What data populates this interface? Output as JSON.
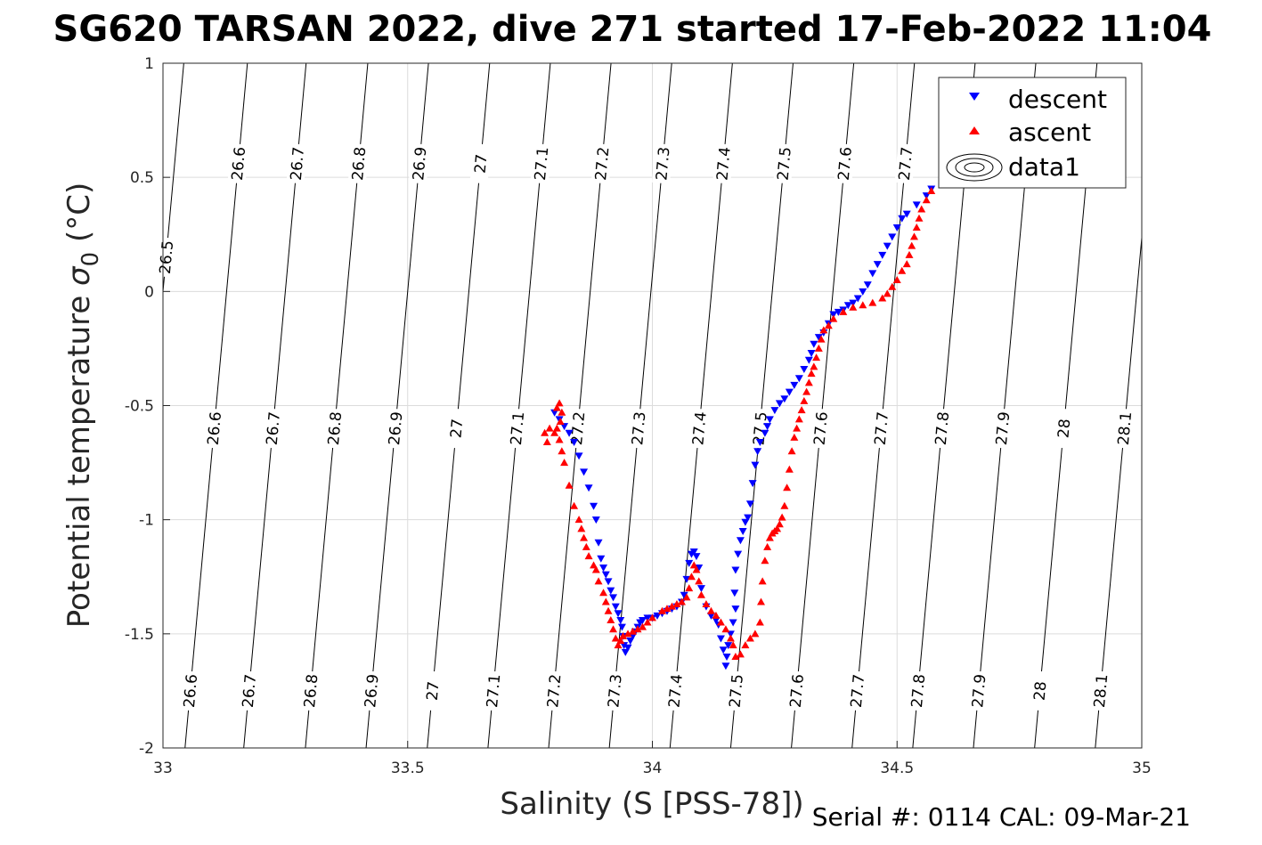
{
  "chart_data": {
    "type": "scatter",
    "title": "SG620 TARSAN 2022, dive 271 started 17-Feb-2022 11:04",
    "xlabel": "Salinity (S [PSS-78])",
    "ylabel": "Potential temperature σ₀ (°C)",
    "ylabel_main": "Potential temperature ",
    "ylabel_sigma": "σ",
    "ylabel_sub": "0",
    "ylabel_unit": " (°C)",
    "footer": "Serial #: 0114  CAL: 09-Mar-21",
    "xlim": [
      33,
      35
    ],
    "ylim": [
      -2,
      1
    ],
    "xticks": [
      33,
      33.5,
      34,
      34.5,
      35
    ],
    "xtick_labels": [
      "33",
      "33.5",
      "34",
      "34.5",
      "35"
    ],
    "yticks": [
      1,
      0.5,
      0,
      -0.5,
      -1,
      -1.5,
      -2
    ],
    "ytick_labels": [
      "1",
      "0.5",
      "0",
      "-0.5",
      "-1",
      "-1.5",
      "-2"
    ],
    "grid": true,
    "legend_position": "top-right",
    "legend": [
      "descent",
      "ascent",
      "data1"
    ],
    "colors": {
      "descent": "#0000ff",
      "ascent": "#ff0000",
      "contour": "#000000",
      "grid": "#dcdcdc"
    },
    "isopycnals": {
      "levels": [
        26.5,
        26.6,
        26.7,
        26.8,
        26.9,
        27.0,
        27.1,
        27.2,
        27.3,
        27.4,
        27.5,
        27.6,
        27.7,
        27.8,
        27.9,
        28.0,
        28.1
      ],
      "label_text": [
        "26.5",
        "26.6",
        "26.7",
        "26.8",
        "26.9",
        "27",
        "27.1",
        "27.2",
        "27.3",
        "27.4",
        "27.5",
        "27.6",
        "27.7",
        "27.8",
        "27.9",
        "28",
        "28.1"
      ],
      "salinity_at_theta_0": [
        33.0,
        33.13,
        33.25,
        33.376,
        33.5,
        33.625,
        33.749,
        33.873,
        33.997,
        34.121,
        34.245,
        34.369,
        34.493,
        34.617,
        34.741,
        34.866,
        34.99
      ],
      "labels_top_row": [
        "26.6",
        "26.7",
        "26.8",
        "26.9",
        "27",
        "27.1",
        "27.2",
        "27.3",
        "27.4",
        "27.5",
        "27.6",
        "27.7"
      ],
      "labels_mid_row": [
        "26.6",
        "26.7",
        "26.8",
        "26.9",
        "27",
        "27.1",
        "27.2",
        "27.3",
        "27.4",
        "27.5",
        "27.6",
        "27.7",
        "27.8",
        "27.9",
        "28",
        "28.1"
      ],
      "labels_bottom_row": [
        "26.6",
        "26.7",
        "26.8",
        "26.9",
        "27",
        "27.1",
        "27.2",
        "27.3",
        "27.4",
        "27.5",
        "27.6",
        "27.7",
        "27.8",
        "27.9",
        "28",
        "28.1"
      ]
    },
    "series": [
      {
        "name": "descent",
        "marker": "triangle-down",
        "points": [
          [
            34.57,
            0.45
          ],
          [
            34.56,
            0.42
          ],
          [
            34.54,
            0.38
          ],
          [
            34.52,
            0.34
          ],
          [
            34.51,
            0.32
          ],
          [
            34.5,
            0.28
          ],
          [
            34.49,
            0.24
          ],
          [
            34.48,
            0.2
          ],
          [
            34.47,
            0.16
          ],
          [
            34.46,
            0.12
          ],
          [
            34.45,
            0.08
          ],
          [
            34.44,
            0.03
          ],
          [
            34.43,
            0.0
          ],
          [
            34.42,
            -0.03
          ],
          [
            34.41,
            -0.05
          ],
          [
            34.4,
            -0.06
          ],
          [
            34.39,
            -0.08
          ],
          [
            34.38,
            -0.09
          ],
          [
            34.37,
            -0.1
          ],
          [
            34.36,
            -0.14
          ],
          [
            34.35,
            -0.18
          ],
          [
            34.34,
            -0.2
          ],
          [
            34.33,
            -0.23
          ],
          [
            34.325,
            -0.27
          ],
          [
            34.32,
            -0.3
          ],
          [
            34.31,
            -0.34
          ],
          [
            34.3,
            -0.38
          ],
          [
            34.29,
            -0.41
          ],
          [
            34.28,
            -0.44
          ],
          [
            34.27,
            -0.47
          ],
          [
            34.26,
            -0.49
          ],
          [
            34.25,
            -0.52
          ],
          [
            34.24,
            -0.56
          ],
          [
            34.235,
            -0.59
          ],
          [
            34.23,
            -0.62
          ],
          [
            34.22,
            -0.66
          ],
          [
            34.215,
            -0.7
          ],
          [
            34.21,
            -0.76
          ],
          [
            34.205,
            -0.84
          ],
          [
            34.2,
            -0.93
          ],
          [
            34.195,
            -0.99
          ],
          [
            34.19,
            -1.01
          ],
          [
            34.185,
            -1.05
          ],
          [
            34.18,
            -1.09
          ],
          [
            34.175,
            -1.15
          ],
          [
            34.17,
            -1.22
          ],
          [
            34.168,
            -1.32
          ],
          [
            34.17,
            -1.39
          ],
          [
            34.165,
            -1.45
          ],
          [
            34.16,
            -1.5
          ],
          [
            34.155,
            -1.55
          ],
          [
            34.152,
            -1.6
          ],
          [
            34.15,
            -1.64
          ],
          [
            34.145,
            -1.57
          ],
          [
            34.14,
            -1.52
          ],
          [
            34.135,
            -1.46
          ],
          [
            34.13,
            -1.44
          ],
          [
            34.12,
            -1.42
          ],
          [
            34.11,
            -1.38
          ],
          [
            34.1,
            -1.3
          ],
          [
            34.095,
            -1.21
          ],
          [
            34.09,
            -1.16
          ],
          [
            34.085,
            -1.14
          ],
          [
            34.08,
            -1.15
          ],
          [
            34.075,
            -1.19
          ],
          [
            34.07,
            -1.26
          ],
          [
            34.065,
            -1.33
          ],
          [
            34.06,
            -1.36
          ],
          [
            34.05,
            -1.38
          ],
          [
            34.04,
            -1.39
          ],
          [
            34.03,
            -1.4
          ],
          [
            34.02,
            -1.41
          ],
          [
            34.01,
            -1.42
          ],
          [
            34.0,
            -1.43
          ],
          [
            33.99,
            -1.43
          ],
          [
            33.98,
            -1.44
          ],
          [
            33.975,
            -1.45
          ],
          [
            33.97,
            -1.47
          ],
          [
            33.965,
            -1.49
          ],
          [
            33.96,
            -1.51
          ],
          [
            33.955,
            -1.53
          ],
          [
            33.95,
            -1.56
          ],
          [
            33.945,
            -1.58
          ],
          [
            33.942,
            -1.55
          ],
          [
            33.94,
            -1.51
          ],
          [
            33.938,
            -1.47
          ],
          [
            33.935,
            -1.44
          ],
          [
            33.93,
            -1.41
          ],
          [
            33.925,
            -1.38
          ],
          [
            33.92,
            -1.34
          ],
          [
            33.915,
            -1.31
          ],
          [
            33.91,
            -1.27
          ],
          [
            33.905,
            -1.24
          ],
          [
            33.9,
            -1.21
          ],
          [
            33.895,
            -1.17
          ],
          [
            33.89,
            -1.1
          ],
          [
            33.885,
            -1.0
          ],
          [
            33.88,
            -0.94
          ],
          [
            33.87,
            -0.86
          ],
          [
            33.86,
            -0.79
          ],
          [
            33.85,
            -0.72
          ],
          [
            33.84,
            -0.66
          ],
          [
            33.83,
            -0.62
          ],
          [
            33.82,
            -0.59
          ],
          [
            33.81,
            -0.56
          ],
          [
            33.8,
            -0.53
          ]
        ]
      },
      {
        "name": "ascent",
        "marker": "triangle-up",
        "points": [
          [
            34.57,
            0.44
          ],
          [
            34.56,
            0.4
          ],
          [
            34.55,
            0.36
          ],
          [
            34.545,
            0.32
          ],
          [
            34.54,
            0.28
          ],
          [
            34.535,
            0.24
          ],
          [
            34.53,
            0.2
          ],
          [
            34.525,
            0.16
          ],
          [
            34.52,
            0.12
          ],
          [
            34.51,
            0.09
          ],
          [
            34.5,
            0.05
          ],
          [
            34.49,
            0.02
          ],
          [
            34.48,
            -0.01
          ],
          [
            34.47,
            -0.03
          ],
          [
            34.45,
            -0.05
          ],
          [
            34.43,
            -0.06
          ],
          [
            34.41,
            -0.07
          ],
          [
            34.39,
            -0.09
          ],
          [
            34.37,
            -0.12
          ],
          [
            34.36,
            -0.15
          ],
          [
            34.35,
            -0.17
          ],
          [
            34.345,
            -0.21
          ],
          [
            34.34,
            -0.25
          ],
          [
            34.335,
            -0.29
          ],
          [
            34.33,
            -0.33
          ],
          [
            34.325,
            -0.36
          ],
          [
            34.32,
            -0.4
          ],
          [
            34.315,
            -0.44
          ],
          [
            34.31,
            -0.48
          ],
          [
            34.305,
            -0.52
          ],
          [
            34.3,
            -0.56
          ],
          [
            34.295,
            -0.6
          ],
          [
            34.29,
            -0.64
          ],
          [
            34.285,
            -0.7
          ],
          [
            34.28,
            -0.78
          ],
          [
            34.275,
            -0.86
          ],
          [
            34.27,
            -0.94
          ],
          [
            34.265,
            -0.99
          ],
          [
            34.26,
            -1.02
          ],
          [
            34.255,
            -1.04
          ],
          [
            34.25,
            -1.05
          ],
          [
            34.245,
            -1.06
          ],
          [
            34.24,
            -1.08
          ],
          [
            34.235,
            -1.12
          ],
          [
            34.23,
            -1.18
          ],
          [
            34.225,
            -1.27
          ],
          [
            34.222,
            -1.36
          ],
          [
            34.22,
            -1.45
          ],
          [
            34.21,
            -1.5
          ],
          [
            34.2,
            -1.52
          ],
          [
            34.19,
            -1.55
          ],
          [
            34.18,
            -1.59
          ],
          [
            34.17,
            -1.6
          ],
          [
            34.165,
            -1.55
          ],
          [
            34.16,
            -1.52
          ],
          [
            34.15,
            -1.48
          ],
          [
            34.14,
            -1.45
          ],
          [
            34.13,
            -1.42
          ],
          [
            34.12,
            -1.4
          ],
          [
            34.11,
            -1.37
          ],
          [
            34.1,
            -1.33
          ],
          [
            34.095,
            -1.27
          ],
          [
            34.09,
            -1.22
          ],
          [
            34.085,
            -1.2
          ],
          [
            34.08,
            -1.25
          ],
          [
            34.075,
            -1.3
          ],
          [
            34.07,
            -1.34
          ],
          [
            34.06,
            -1.36
          ],
          [
            34.05,
            -1.37
          ],
          [
            34.04,
            -1.38
          ],
          [
            34.03,
            -1.39
          ],
          [
            34.02,
            -1.4
          ],
          [
            34.0,
            -1.43
          ],
          [
            33.99,
            -1.45
          ],
          [
            33.98,
            -1.47
          ],
          [
            33.97,
            -1.48
          ],
          [
            33.96,
            -1.49
          ],
          [
            33.95,
            -1.5
          ],
          [
            33.94,
            -1.51
          ],
          [
            33.935,
            -1.53
          ],
          [
            33.93,
            -1.55
          ],
          [
            33.925,
            -1.52
          ],
          [
            33.92,
            -1.48
          ],
          [
            33.915,
            -1.44
          ],
          [
            33.91,
            -1.4
          ],
          [
            33.905,
            -1.36
          ],
          [
            33.9,
            -1.32
          ],
          [
            33.89,
            -1.27
          ],
          [
            33.885,
            -1.22
          ],
          [
            33.88,
            -1.2
          ],
          [
            33.87,
            -1.16
          ],
          [
            33.865,
            -1.12
          ],
          [
            33.86,
            -1.08
          ],
          [
            33.855,
            -1.04
          ],
          [
            33.85,
            -1.0
          ],
          [
            33.84,
            -0.94
          ],
          [
            33.83,
            -0.85
          ],
          [
            33.82,
            -0.75
          ],
          [
            33.815,
            -0.7
          ],
          [
            33.81,
            -0.65
          ],
          [
            33.805,
            -0.6
          ],
          [
            33.8,
            -0.62
          ],
          [
            33.79,
            -0.6
          ],
          [
            33.785,
            -0.66
          ],
          [
            33.78,
            -0.62
          ],
          [
            33.815,
            -0.53
          ],
          [
            33.81,
            -0.49
          ],
          [
            33.805,
            -0.51
          ],
          [
            33.812,
            -0.57
          ]
        ]
      }
    ]
  }
}
